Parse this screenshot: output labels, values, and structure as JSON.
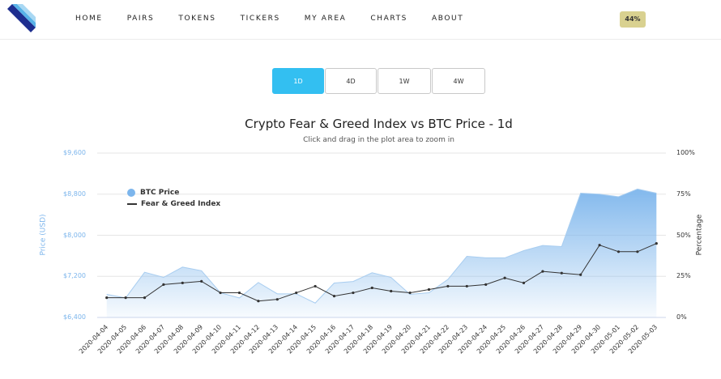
{
  "nav": {
    "items": [
      "HOME",
      "PAIRS",
      "TOKENS",
      "TICKERS",
      "MY AREA",
      "CHARTS",
      "ABOUT"
    ],
    "badge": "44%"
  },
  "ranges": [
    {
      "label": "1D",
      "active": true
    },
    {
      "label": "4D",
      "active": false
    },
    {
      "label": "1W",
      "active": false
    },
    {
      "label": "4W",
      "active": false
    }
  ],
  "chart_data": {
    "type": "line",
    "title": "Crypto Fear & Greed Index vs BTC Price - 1d",
    "subtitle": "Click and drag in the plot area to zoom in",
    "x": [
      "2020-04-04",
      "2020-04-05",
      "2020-04-06",
      "2020-04-07",
      "2020-04-08",
      "2020-04-09",
      "2020-04-10",
      "2020-04-11",
      "2020-04-12",
      "2020-04-13",
      "2020-04-14",
      "2020-04-15",
      "2020-04-16",
      "2020-04-17",
      "2020-04-18",
      "2020-04-19",
      "2020-04-20",
      "2020-04-21",
      "2020-04-22",
      "2020-04-23",
      "2020-04-24",
      "2020-04-25",
      "2020-04-26",
      "2020-04-27",
      "2020-04-28",
      "2020-04-29",
      "2020-04-30",
      "2020-05-01",
      "2020-05-02",
      "2020-05-03"
    ],
    "series": [
      {
        "name": "BTC Price",
        "axis": "left",
        "style": "area",
        "color": "#7cb5ec",
        "values": [
          6850,
          6780,
          7280,
          7180,
          7380,
          7310,
          6880,
          6780,
          7080,
          6860,
          6860,
          6680,
          7070,
          7100,
          7270,
          7180,
          6850,
          6880,
          7140,
          7590,
          7560,
          7560,
          7700,
          7800,
          7780,
          8820,
          8800,
          8750,
          8900,
          8820
        ]
      },
      {
        "name": "Fear & Greed Index",
        "axis": "right",
        "style": "line",
        "color": "#333333",
        "values": [
          12,
          12,
          12,
          20,
          21,
          22,
          15,
          15,
          10,
          11,
          15,
          19,
          13,
          15,
          18,
          16,
          15,
          17,
          19,
          19,
          20,
          24,
          21,
          28,
          27,
          26,
          44,
          40,
          40,
          45
        ]
      }
    ],
    "ylabel_left": "Price (USD)",
    "ylabel_right": "Percentage",
    "ylim_left": [
      6400,
      9600
    ],
    "ylim_right": [
      0,
      100
    ],
    "yticks_left": [
      "$6,400",
      "$7,200",
      "$8,000",
      "$8,800",
      "$9,600"
    ],
    "yticks_right": [
      "0%",
      "25%",
      "50%",
      "75%",
      "100%"
    ],
    "legend_position": "top-left",
    "grid": true
  }
}
